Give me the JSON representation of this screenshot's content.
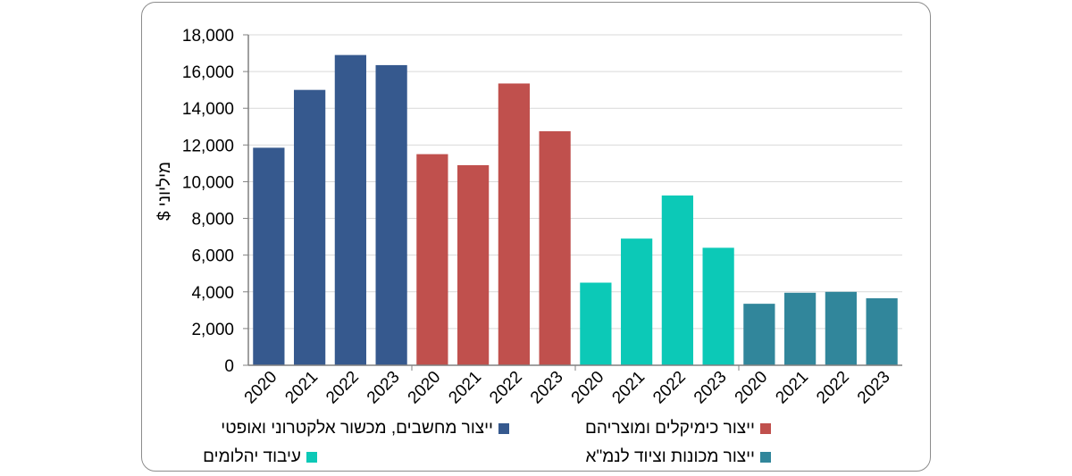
{
  "chart_data": {
    "type": "bar",
    "ylabel": "מיליוני $",
    "ylim": [
      0,
      18000
    ],
    "yticks": [
      "0",
      "2,000",
      "4,000",
      "6,000",
      "8,000",
      "10,000",
      "12,000",
      "14,000",
      "16,000",
      "18,000"
    ],
    "grid": true,
    "legend_position": "bottom",
    "categories": [
      "2020",
      "2021",
      "2022",
      "2023"
    ],
    "series": [
      {
        "name": "ייצור מחשבים, מכשור אלקטרוני ואופטי",
        "color": "#36598e",
        "values": [
          11850,
          15000,
          16900,
          16350
        ]
      },
      {
        "name": "ייצור כימיקלים ומוצריהם",
        "color": "#c0504d",
        "values": [
          11500,
          10900,
          15350,
          12750
        ]
      },
      {
        "name": "עיבוד יהלומים",
        "color": "#0cc9b7",
        "values": [
          4500,
          6900,
          9250,
          6400
        ]
      },
      {
        "name": "ייצור מכונות וציוד לנמ\"א",
        "color": "#31869b",
        "values": [
          3350,
          3950,
          4000,
          3650
        ]
      }
    ]
  }
}
